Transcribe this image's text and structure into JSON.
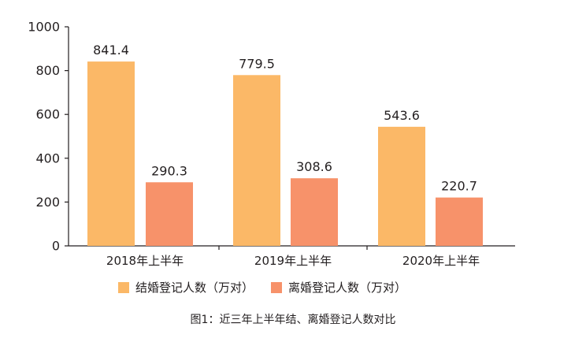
{
  "chart_data": {
    "type": "bar",
    "categories": [
      "2018年上半年",
      "2019年上半年",
      "2020年上半年"
    ],
    "series": [
      {
        "name": "结婚登记人数（万对）",
        "values": [
          841.4,
          779.5,
          543.6
        ],
        "color": "#fbb867"
      },
      {
        "name": "离婚登记人数（万对）",
        "values": [
          290.3,
          308.6,
          220.7
        ],
        "color": "#f7926a"
      }
    ],
    "data_labels": [
      "841.4",
      "779.5",
      "543.6",
      "290.3",
      "308.6",
      "220.7"
    ],
    "yticks": [
      "0",
      "200",
      "400",
      "600",
      "800",
      "1000"
    ],
    "ylim": [
      0,
      1000
    ],
    "grid": false,
    "legend_position": "bottom",
    "caption": "图1：近三年上半年结、离婚登记人数对比"
  }
}
